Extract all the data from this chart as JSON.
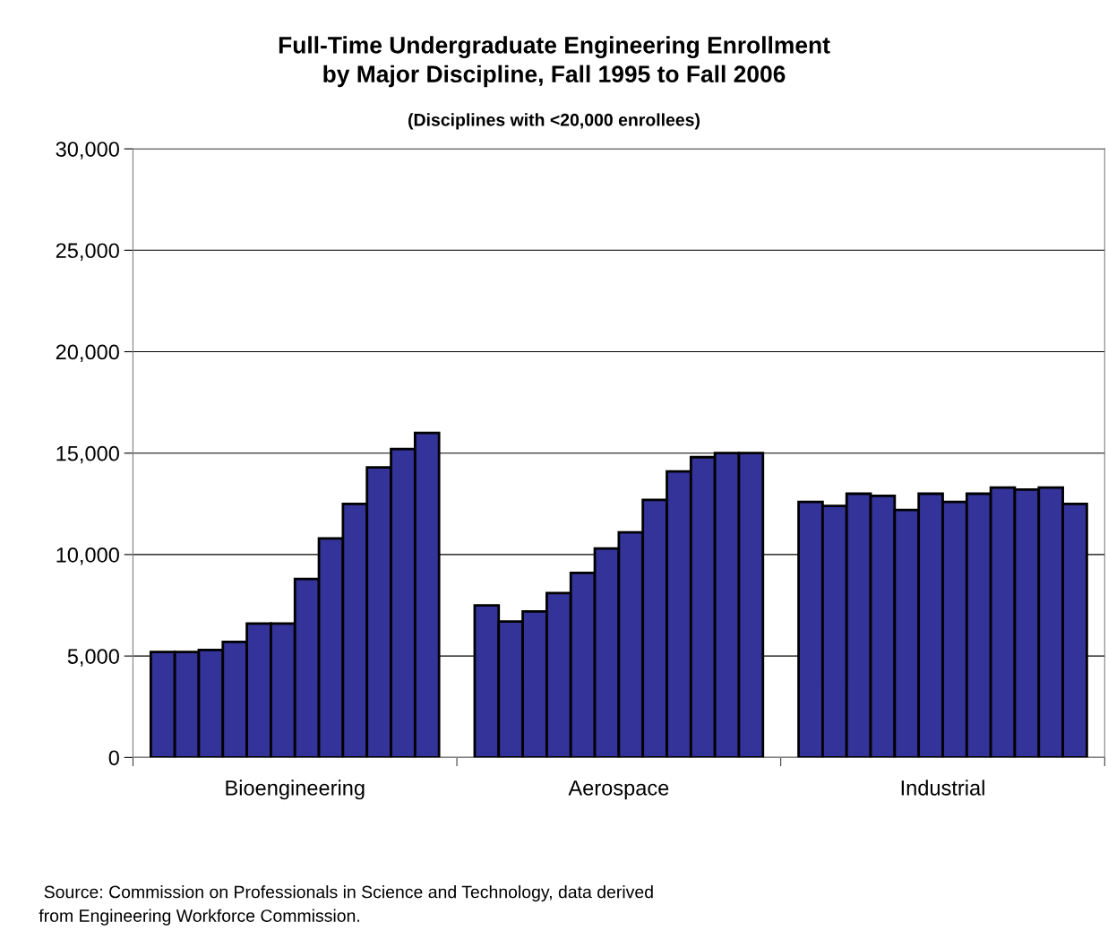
{
  "chart_data": {
    "type": "bar",
    "title": "Full-Time Undergraduate Engineering Enrollment\nby Major Discipline, Fall 1995 to Fall 2006",
    "subtitle": "(Disciplines with <20,000 enrollees)",
    "categories": [
      "Bioengineering",
      "Aerospace",
      "Industrial"
    ],
    "series": [
      {
        "color": "#333399",
        "values": [
          5200,
          7500,
          12600
        ]
      },
      {
        "color": "#333399",
        "values": [
          5200,
          6700,
          12400
        ]
      },
      {
        "color": "#333399",
        "values": [
          5300,
          7200,
          13000
        ]
      },
      {
        "color": "#333399",
        "values": [
          5700,
          8100,
          12900
        ]
      },
      {
        "color": "#333399",
        "values": [
          6600,
          9100,
          12200
        ]
      },
      {
        "color": "#333399",
        "values": [
          6600,
          10300,
          13000
        ]
      },
      {
        "color": "#333399",
        "values": [
          8800,
          11100,
          12600
        ]
      },
      {
        "color": "#333399",
        "values": [
          10800,
          12700,
          13000
        ]
      },
      {
        "color": "#333399",
        "values": [
          12500,
          14100,
          13300
        ]
      },
      {
        "color": "#333399",
        "values": [
          14300,
          14800,
          13200
        ]
      },
      {
        "color": "#333399",
        "values": [
          15200,
          15000,
          13300
        ]
      },
      {
        "color": "#333399",
        "values": [
          16000,
          15000,
          12500
        ]
      }
    ],
    "ylim": [
      0,
      30000
    ],
    "yticks": [
      0,
      {
        "value": 5000,
        "label": "5,000"
      },
      {
        "value": 10000,
        "label": "10,000"
      },
      {
        "value": 15000,
        "label": "15,000"
      },
      {
        "value": 20000,
        "label": "20,000"
      },
      {
        "value": 25000,
        "label": "25,000"
      },
      {
        "value": 30000,
        "label": "30,000"
      }
    ],
    "grid": "y",
    "annotations": [
      " Source: Commission on Professionals in Science and Technology, data derived\nfrom Engineering Workforce Commission."
    ]
  }
}
